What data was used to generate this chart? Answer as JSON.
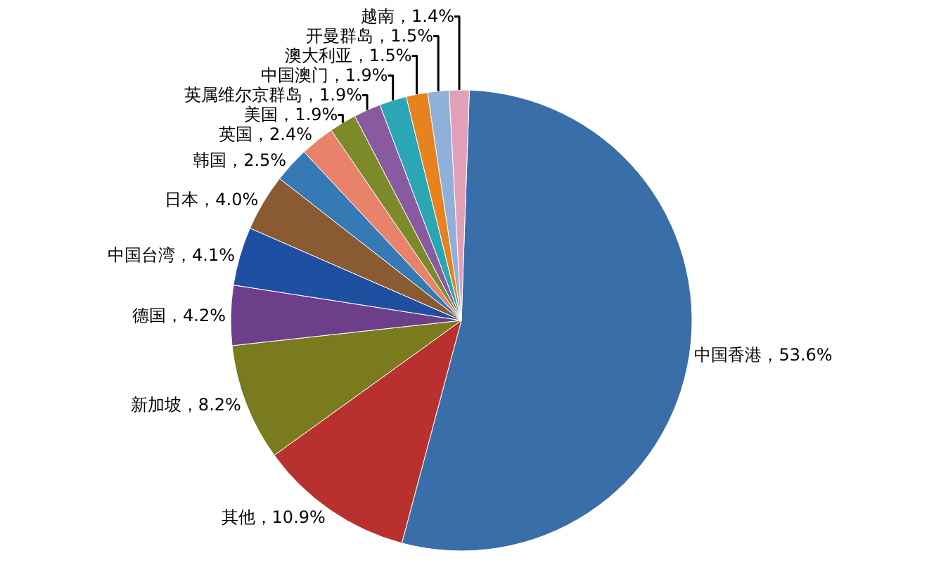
{
  "chart_data": {
    "type": "pie",
    "categories": [
      "中国香港",
      "其他",
      "新加坡",
      "德国",
      "中国台湾",
      "日本",
      "韩国",
      "英国",
      "美国",
      "英属维尔京群岛",
      "中国澳门",
      "澳大利亚",
      "开曼群岛",
      "越南"
    ],
    "values": [
      53.6,
      10.9,
      8.2,
      4.2,
      4.1,
      4.0,
      2.5,
      2.4,
      1.9,
      1.9,
      1.9,
      1.5,
      1.5,
      1.4
    ],
    "value_labels": [
      "，53.6%",
      "，10.9%",
      "，8.2%",
      "，4.2%",
      "，4.1%",
      "，4.0%",
      "，2.5%",
      "，2.4%",
      "，1.9%",
      "，1.9%",
      "，1.9%",
      "，1.5%",
      "，1.5%",
      "，1.4%"
    ],
    "colors": [
      "#3a6ea8",
      "#b8312f",
      "#7a7a1e",
      "#6d3f8a",
      "#1f4fa0",
      "#8a5a32",
      "#3579b5",
      "#e8826a",
      "#7d8a2a",
      "#8a5aa0",
      "#2aa6b4",
      "#e8821e",
      "#8fb0d8",
      "#e0a0b8"
    ],
    "legend": false
  }
}
